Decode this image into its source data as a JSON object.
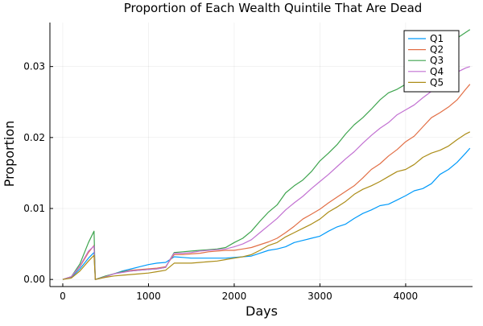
{
  "chart_data": {
    "type": "line",
    "title": "Proportion of Each Wealth Quintile That Are Dead",
    "xlabel": "Days",
    "ylabel": "Proportion",
    "xlim": [
      -150,
      4780
    ],
    "ylim": [
      -0.001,
      0.0362
    ],
    "xticks": [
      0,
      1000,
      2000,
      3000,
      4000
    ],
    "xtick_labels": [
      "0",
      "1000",
      "2000",
      "3000",
      "4000"
    ],
    "yticks": [
      0,
      0.01,
      0.02,
      0.03
    ],
    "ytick_labels": [
      "0.00",
      "0.01",
      "0.02",
      "0.03"
    ],
    "grid": true,
    "legend": {
      "position": "top-right"
    },
    "series": [
      {
        "name": "Q1",
        "color": "#009AFA",
        "x": [
          0,
          100,
          200,
          300,
          365,
          380,
          500,
          600,
          700,
          800,
          900,
          1000,
          1100,
          1200,
          1250,
          1300,
          1400,
          1500,
          1600,
          1700,
          1800,
          1900,
          2000,
          2100,
          2200,
          2300,
          2400,
          2500,
          2600,
          2700,
          2800,
          2900,
          3000,
          3100,
          3200,
          3300,
          3400,
          3500,
          3600,
          3700,
          3800,
          3900,
          4000,
          4100,
          4200,
          4300,
          4400,
          4500,
          4600,
          4700,
          4750
        ],
        "y": [
          0.0,
          0.0003,
          0.0015,
          0.003,
          0.0038,
          0.0,
          0.0004,
          0.0008,
          0.0012,
          0.0015,
          0.0018,
          0.0021,
          0.0023,
          0.0024,
          0.0028,
          0.0032,
          0.0031,
          0.003,
          0.003,
          0.003,
          0.003,
          0.003,
          0.0031,
          0.0032,
          0.0033,
          0.0037,
          0.0041,
          0.0043,
          0.0046,
          0.0052,
          0.0055,
          0.0058,
          0.0061,
          0.0068,
          0.0074,
          0.0078,
          0.0086,
          0.0093,
          0.0098,
          0.0104,
          0.0106,
          0.0112,
          0.0118,
          0.0125,
          0.0128,
          0.0135,
          0.0148,
          0.0155,
          0.0165,
          0.0178,
          0.0185
        ]
      },
      {
        "name": "Q2",
        "color": "#E26F46",
        "x": [
          0,
          100,
          200,
          300,
          365,
          380,
          500,
          600,
          700,
          800,
          900,
          1000,
          1100,
          1200,
          1250,
          1300,
          1400,
          1500,
          1600,
          1700,
          1800,
          1900,
          2000,
          2100,
          2200,
          2300,
          2400,
          2500,
          2600,
          2700,
          2800,
          2900,
          3000,
          3100,
          3200,
          3300,
          3400,
          3500,
          3600,
          3700,
          3800,
          3900,
          4000,
          4100,
          4200,
          4300,
          4400,
          4500,
          4600,
          4700,
          4750
        ],
        "y": [
          0.0,
          0.0004,
          0.0018,
          0.0038,
          0.0048,
          0.0,
          0.0004,
          0.0008,
          0.0011,
          0.0013,
          0.0014,
          0.0015,
          0.0016,
          0.0018,
          0.0027,
          0.0035,
          0.0035,
          0.0036,
          0.0037,
          0.0039,
          0.004,
          0.0041,
          0.0041,
          0.0043,
          0.0045,
          0.0049,
          0.0053,
          0.0058,
          0.0066,
          0.0075,
          0.0085,
          0.0092,
          0.0099,
          0.0108,
          0.0116,
          0.0124,
          0.0132,
          0.0143,
          0.0155,
          0.0163,
          0.0174,
          0.0183,
          0.0194,
          0.0202,
          0.0215,
          0.0228,
          0.0235,
          0.0243,
          0.0253,
          0.0268,
          0.0275
        ]
      },
      {
        "name": "Q3",
        "color": "#3EA44E",
        "x": [
          0,
          100,
          200,
          300,
          365,
          380,
          500,
          600,
          700,
          800,
          900,
          1000,
          1100,
          1200,
          1250,
          1300,
          1400,
          1500,
          1600,
          1700,
          1800,
          1900,
          2000,
          2100,
          2200,
          2300,
          2400,
          2500,
          2600,
          2700,
          2800,
          2900,
          3000,
          3100,
          3200,
          3300,
          3400,
          3500,
          3600,
          3700,
          3800,
          3900,
          4000,
          4100,
          4200,
          4300,
          4400,
          4500,
          4600,
          4700,
          4750
        ],
        "y": [
          0.0,
          0.0004,
          0.0022,
          0.0052,
          0.0068,
          0.0,
          0.0005,
          0.0008,
          0.0011,
          0.0012,
          0.0013,
          0.0014,
          0.0015,
          0.0017,
          0.0028,
          0.0038,
          0.0039,
          0.004,
          0.0041,
          0.0042,
          0.0043,
          0.0045,
          0.0052,
          0.0058,
          0.0068,
          0.0082,
          0.0095,
          0.0105,
          0.0122,
          0.0132,
          0.014,
          0.0152,
          0.0167,
          0.0178,
          0.019,
          0.0205,
          0.0218,
          0.0228,
          0.024,
          0.0253,
          0.0263,
          0.0268,
          0.0275,
          0.0283,
          0.0295,
          0.0305,
          0.032,
          0.0332,
          0.034,
          0.0348,
          0.0352
        ]
      },
      {
        "name": "Q4",
        "color": "#C271D2",
        "x": [
          0,
          100,
          200,
          300,
          365,
          380,
          500,
          600,
          700,
          800,
          900,
          1000,
          1100,
          1200,
          1250,
          1300,
          1400,
          1500,
          1600,
          1700,
          1800,
          1900,
          2000,
          2100,
          2200,
          2300,
          2400,
          2500,
          2600,
          2700,
          2800,
          2900,
          3000,
          3100,
          3200,
          3300,
          3400,
          3500,
          3600,
          3700,
          3800,
          3900,
          4000,
          4100,
          4200,
          4300,
          4400,
          4500,
          4600,
          4700,
          4750
        ],
        "y": [
          0.0,
          0.0004,
          0.0019,
          0.004,
          0.0047,
          0.0,
          0.0004,
          0.0008,
          0.001,
          0.0012,
          0.0013,
          0.0014,
          0.0015,
          0.0017,
          0.0028,
          0.0037,
          0.0037,
          0.0038,
          0.004,
          0.0041,
          0.0042,
          0.0043,
          0.0046,
          0.005,
          0.0056,
          0.0066,
          0.0076,
          0.0086,
          0.0098,
          0.0108,
          0.0117,
          0.0128,
          0.0138,
          0.0148,
          0.0159,
          0.017,
          0.018,
          0.0192,
          0.0203,
          0.0213,
          0.0221,
          0.0232,
          0.0239,
          0.0246,
          0.0256,
          0.0265,
          0.0275,
          0.0283,
          0.0292,
          0.0298,
          0.03
        ]
      },
      {
        "name": "Q5",
        "color": "#AC8D18",
        "x": [
          0,
          100,
          200,
          300,
          365,
          380,
          500,
          600,
          700,
          800,
          900,
          1000,
          1100,
          1200,
          1250,
          1300,
          1400,
          1500,
          1600,
          1700,
          1800,
          1900,
          2000,
          2100,
          2200,
          2300,
          2400,
          2500,
          2600,
          2700,
          2800,
          2900,
          3000,
          3100,
          3200,
          3300,
          3400,
          3500,
          3600,
          3700,
          3800,
          3900,
          4000,
          4100,
          4200,
          4300,
          4400,
          4500,
          4600,
          4700,
          4750
        ],
        "y": [
          0.0,
          0.0002,
          0.0012,
          0.0026,
          0.0034,
          0.0,
          0.0003,
          0.0005,
          0.0006,
          0.0007,
          0.0008,
          0.0009,
          0.0011,
          0.0013,
          0.0018,
          0.0023,
          0.0023,
          0.0023,
          0.0024,
          0.0025,
          0.0026,
          0.0028,
          0.003,
          0.0032,
          0.0035,
          0.0041,
          0.0048,
          0.0052,
          0.006,
          0.0066,
          0.0072,
          0.0078,
          0.0085,
          0.0095,
          0.0102,
          0.011,
          0.012,
          0.0127,
          0.0132,
          0.0138,
          0.0145,
          0.0152,
          0.0155,
          0.0162,
          0.0172,
          0.0178,
          0.0182,
          0.0188,
          0.0197,
          0.0205,
          0.0208
        ]
      }
    ]
  }
}
